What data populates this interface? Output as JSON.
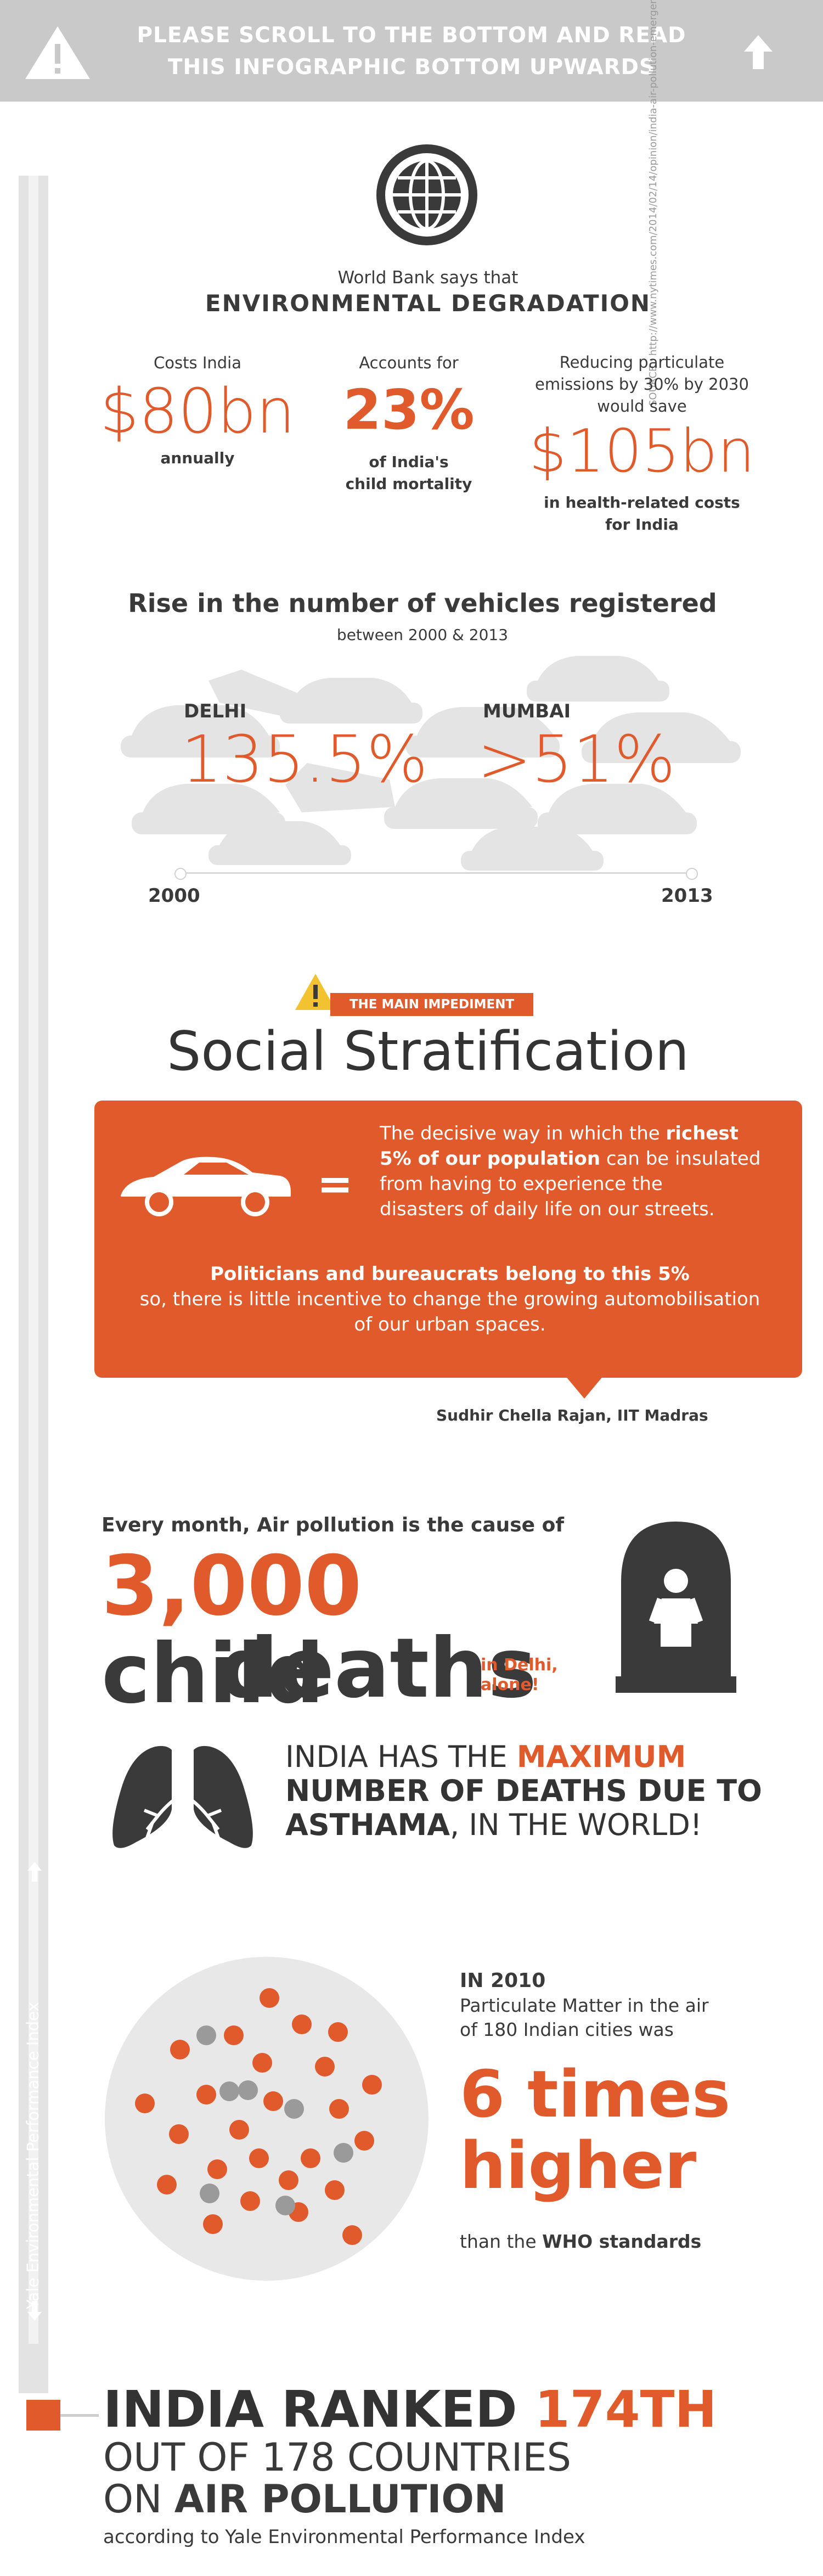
{
  "banner": {
    "line1": "PLEASE SCROLL TO THE BOTTOM AND READ",
    "line2": "THIS INFOGRAPHIC BOTTOM UPWARDS"
  },
  "source": "SOURCE :  http://www.nytimes.com/2014/02/14/opinion/india-air-pollution-emergency.html?_r=0",
  "rail_label": "Yale Environmental Performance Index",
  "worldbank": {
    "intro": "World Bank says that",
    "heading": "ENVIRONMENTAL DEGRADATION",
    "stat1": {
      "label": "Costs India",
      "value": "$80bn",
      "sub": "annually"
    },
    "stat2": {
      "label": "Accounts for",
      "value": "23%",
      "sub1": "of India's",
      "sub2": "child mortality"
    },
    "stat3": {
      "label1": "Reducing particulate",
      "label2": "emissions by 30% by 2030",
      "label3": "would save",
      "value": "$105bn",
      "sub1": "in health-related costs",
      "sub2": "for India"
    }
  },
  "vehicles": {
    "heading": "Rise in the number of vehicles registered",
    "sub": "between 2000 & 2013",
    "city1": {
      "name": "DELHI",
      "value": "135.5%"
    },
    "city2": {
      "name": "MUMBAI",
      "value": ">51%"
    },
    "year_start": "2000",
    "year_end": "2013"
  },
  "impediment": {
    "tag": "THE MAIN IMPEDIMENT",
    "title": "Social Stratification",
    "equals": "=",
    "q1_a": "The decisive way in which the ",
    "q1_b": "richest",
    "q2": "5% of our population",
    "q2_b": " can be insulated",
    "q3": "from having to experience the",
    "q4": "disasters of daily life on our streets.",
    "q5": "Politicians and bureaucrats belong to this 5%",
    "q6": "so, there is little incentive to change the growing automobilisation",
    "q7": "of our urban spaces.",
    "attribution": "Sudhir Chella Rajan, IIT Madras"
  },
  "deaths": {
    "intro": "Every month, Air pollution is the cause of",
    "number": "3,000",
    "word1": "child",
    "word2": "deaths",
    "note1": "in Delhi,",
    "note2": "alone!"
  },
  "asthma": {
    "l1a": "INDIA HAS THE ",
    "l1b": "MAXIMUM",
    "l2": "NUMBER OF DEATHS DUE TO",
    "l3a": "ASTHAMA",
    "l3b": ", IN THE WORLD!"
  },
  "pm": {
    "year": "IN 2010",
    "l1": "Particulate Matter in the air",
    "l2": "of 180 Indian cities was",
    "big1": "6 times",
    "big2": "higher",
    "tail_a": "than the ",
    "tail_b": "WHO standards"
  },
  "rank": {
    "l1a": "INDIA RANKED ",
    "l1b": "174TH",
    "l2": "OUT OF 178 COUNTRIES",
    "l3a": "ON ",
    "l3b": "AIR POLLUTION",
    "l4": "according to Yale Environmental Performance Index"
  },
  "colors": {
    "accent": "#e05a2b",
    "dark": "#3a3a3a",
    "banner": "#c9c9c9",
    "light": "#e8e8e8"
  }
}
